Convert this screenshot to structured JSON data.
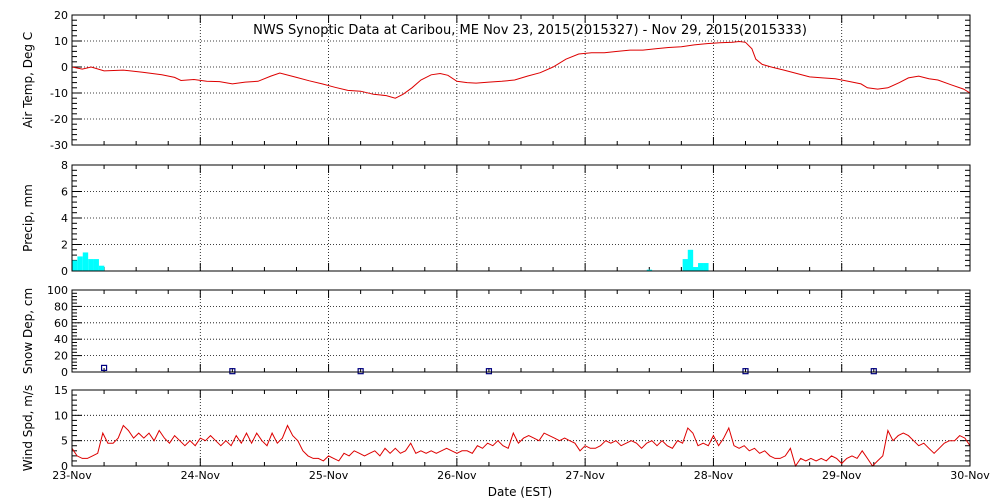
{
  "title": "NWS Synoptic Data at Caribou, ME    Nov 23, 2015(2015327) - Nov 29, 2015(2015333)",
  "xlabel": "Date (EST)",
  "colors": {
    "temp": "#dd0000",
    "precip": "#00ffff",
    "snow": "#000080",
    "wind": "#dd0000",
    "frame": "#000000"
  },
  "chart_data": [
    {
      "name": "air-temp",
      "type": "line",
      "ylabel": "Air Temp, Deg C",
      "ylim": [
        -30,
        20
      ],
      "yticks": [
        -30,
        -20,
        -10,
        0,
        10,
        20
      ],
      "x_dates": [
        "23-Nov",
        "24-Nov",
        "25-Nov",
        "26-Nov",
        "27-Nov",
        "28-Nov",
        "29-Nov",
        "30-Nov"
      ],
      "xlim_days": [
        0,
        7
      ],
      "grid": true,
      "points": [
        [
          0.0,
          0.0
        ],
        [
          0.08,
          -0.8
        ],
        [
          0.15,
          0.0
        ],
        [
          0.25,
          -1.5
        ],
        [
          0.4,
          -1.2
        ],
        [
          0.55,
          -2.0
        ],
        [
          0.7,
          -3.0
        ],
        [
          0.8,
          -4.0
        ],
        [
          0.85,
          -5.2
        ],
        [
          0.95,
          -4.8
        ],
        [
          1.05,
          -5.5
        ],
        [
          1.15,
          -5.6
        ],
        [
          1.25,
          -6.5
        ],
        [
          1.35,
          -5.8
        ],
        [
          1.45,
          -5.5
        ],
        [
          1.55,
          -3.5
        ],
        [
          1.62,
          -2.3
        ],
        [
          1.75,
          -4.0
        ],
        [
          1.85,
          -5.3
        ],
        [
          1.95,
          -6.5
        ],
        [
          2.05,
          -7.8
        ],
        [
          2.15,
          -9.0
        ],
        [
          2.25,
          -9.3
        ],
        [
          2.35,
          -10.5
        ],
        [
          2.45,
          -11.0
        ],
        [
          2.52,
          -12.0
        ],
        [
          2.58,
          -10.5
        ],
        [
          2.65,
          -8.0
        ],
        [
          2.72,
          -5.0
        ],
        [
          2.8,
          -3.0
        ],
        [
          2.87,
          -2.5
        ],
        [
          2.93,
          -3.2
        ],
        [
          3.0,
          -5.5
        ],
        [
          3.08,
          -6.0
        ],
        [
          3.15,
          -6.2
        ],
        [
          3.25,
          -5.8
        ],
        [
          3.35,
          -5.5
        ],
        [
          3.45,
          -5.0
        ],
        [
          3.55,
          -3.5
        ],
        [
          3.65,
          -2.2
        ],
        [
          3.75,
          0.0
        ],
        [
          3.85,
          3.0
        ],
        [
          3.95,
          5.0
        ],
        [
          4.05,
          5.5
        ],
        [
          4.15,
          5.5
        ],
        [
          4.25,
          6.0
        ],
        [
          4.35,
          6.5
        ],
        [
          4.45,
          6.5
        ],
        [
          4.55,
          7.0
        ],
        [
          4.65,
          7.5
        ],
        [
          4.75,
          7.8
        ],
        [
          4.85,
          8.5
        ],
        [
          4.95,
          9.0
        ],
        [
          5.05,
          9.3
        ],
        [
          5.15,
          9.5
        ],
        [
          5.2,
          9.8
        ],
        [
          5.25,
          9.5
        ],
        [
          5.3,
          7.0
        ],
        [
          5.33,
          3.0
        ],
        [
          5.38,
          1.0
        ],
        [
          5.45,
          0.0
        ],
        [
          5.55,
          -1.2
        ],
        [
          5.65,
          -2.5
        ],
        [
          5.75,
          -3.8
        ],
        [
          5.85,
          -4.2
        ],
        [
          5.95,
          -4.5
        ],
        [
          6.05,
          -5.5
        ],
        [
          6.15,
          -6.5
        ],
        [
          6.2,
          -8.0
        ],
        [
          6.28,
          -8.5
        ],
        [
          6.36,
          -8.0
        ],
        [
          6.45,
          -6.0
        ],
        [
          6.52,
          -4.2
        ],
        [
          6.6,
          -3.5
        ],
        [
          6.68,
          -4.5
        ],
        [
          6.75,
          -5.0
        ],
        [
          6.85,
          -6.8
        ],
        [
          6.95,
          -8.5
        ],
        [
          7.0,
          -10.0
        ]
      ]
    },
    {
      "name": "precip",
      "type": "bar",
      "ylabel": "Precip, mm",
      "ylim": [
        0,
        8
      ],
      "yticks": [
        0,
        2,
        4,
        6,
        8
      ],
      "x_dates": [
        "23-Nov",
        "24-Nov",
        "25-Nov",
        "26-Nov",
        "27-Nov",
        "28-Nov",
        "29-Nov",
        "30-Nov"
      ],
      "xlim_days": [
        0,
        7
      ],
      "grid": true,
      "bar_width_days": 0.042,
      "bars": [
        [
          0.0,
          0.8
        ],
        [
          0.042,
          1.1
        ],
        [
          0.084,
          1.4
        ],
        [
          0.126,
          0.9
        ],
        [
          0.168,
          0.9
        ],
        [
          0.21,
          0.4
        ],
        [
          4.48,
          0.1
        ],
        [
          4.76,
          0.9
        ],
        [
          4.8,
          1.6
        ],
        [
          4.84,
          0.3
        ],
        [
          4.88,
          0.6
        ],
        [
          4.92,
          0.6
        ]
      ]
    },
    {
      "name": "snow-depth",
      "type": "scatter",
      "ylabel": "Snow Dep, cm",
      "ylim": [
        0,
        100
      ],
      "yticks": [
        0,
        20,
        40,
        60,
        80,
        100
      ],
      "x_dates": [
        "23-Nov",
        "24-Nov",
        "25-Nov",
        "26-Nov",
        "27-Nov",
        "28-Nov",
        "29-Nov",
        "30-Nov"
      ],
      "xlim_days": [
        0,
        7
      ],
      "grid": true,
      "points": [
        [
          0.25,
          5
        ],
        [
          1.25,
          1
        ],
        [
          2.25,
          1
        ],
        [
          3.25,
          1
        ],
        [
          5.25,
          1
        ],
        [
          6.25,
          1
        ]
      ]
    },
    {
      "name": "wind-speed",
      "type": "line",
      "ylabel": "Wind Spd, m/s",
      "ylim": [
        0,
        15
      ],
      "yticks": [
        0,
        5,
        10,
        15
      ],
      "x_dates": [
        "23-Nov",
        "24-Nov",
        "25-Nov",
        "26-Nov",
        "27-Nov",
        "28-Nov",
        "29-Nov",
        "30-Nov"
      ],
      "xlim_days": [
        0,
        7
      ],
      "grid": true,
      "points": [
        [
          0.0,
          3.5
        ],
        [
          0.04,
          2.0
        ],
        [
          0.08,
          1.5
        ],
        [
          0.12,
          1.5
        ],
        [
          0.16,
          2.0
        ],
        [
          0.2,
          2.5
        ],
        [
          0.24,
          6.5
        ],
        [
          0.28,
          4.5
        ],
        [
          0.32,
          4.5
        ],
        [
          0.36,
          5.5
        ],
        [
          0.4,
          8.0
        ],
        [
          0.44,
          7.0
        ],
        [
          0.48,
          5.5
        ],
        [
          0.52,
          6.5
        ],
        [
          0.56,
          5.5
        ],
        [
          0.6,
          6.5
        ],
        [
          0.64,
          5.0
        ],
        [
          0.68,
          7.0
        ],
        [
          0.72,
          5.5
        ],
        [
          0.76,
          4.5
        ],
        [
          0.8,
          6.0
        ],
        [
          0.84,
          5.0
        ],
        [
          0.88,
          4.0
        ],
        [
          0.92,
          5.0
        ],
        [
          0.96,
          4.0
        ],
        [
          1.0,
          5.5
        ],
        [
          1.04,
          5.0
        ],
        [
          1.08,
          6.0
        ],
        [
          1.12,
          5.0
        ],
        [
          1.16,
          4.0
        ],
        [
          1.2,
          5.0
        ],
        [
          1.24,
          4.0
        ],
        [
          1.28,
          6.0
        ],
        [
          1.32,
          4.5
        ],
        [
          1.36,
          6.5
        ],
        [
          1.4,
          4.5
        ],
        [
          1.44,
          6.5
        ],
        [
          1.48,
          5.0
        ],
        [
          1.52,
          4.0
        ],
        [
          1.56,
          6.5
        ],
        [
          1.6,
          4.5
        ],
        [
          1.64,
          5.5
        ],
        [
          1.68,
          8.0
        ],
        [
          1.72,
          6.0
        ],
        [
          1.76,
          5.0
        ],
        [
          1.8,
          3.0
        ],
        [
          1.84,
          2.0
        ],
        [
          1.88,
          1.5
        ],
        [
          1.92,
          1.5
        ],
        [
          1.96,
          1.0
        ],
        [
          2.0,
          2.0
        ],
        [
          2.04,
          1.5
        ],
        [
          2.08,
          1.0
        ],
        [
          2.12,
          2.5
        ],
        [
          2.16,
          2.0
        ],
        [
          2.2,
          3.0
        ],
        [
          2.24,
          2.5
        ],
        [
          2.28,
          2.0
        ],
        [
          2.32,
          2.5
        ],
        [
          2.36,
          3.0
        ],
        [
          2.4,
          2.0
        ],
        [
          2.44,
          3.5
        ],
        [
          2.48,
          2.5
        ],
        [
          2.52,
          3.5
        ],
        [
          2.56,
          2.5
        ],
        [
          2.6,
          3.0
        ],
        [
          2.64,
          4.5
        ],
        [
          2.68,
          2.5
        ],
        [
          2.72,
          3.0
        ],
        [
          2.76,
          2.5
        ],
        [
          2.8,
          3.0
        ],
        [
          2.84,
          2.5
        ],
        [
          2.88,
          3.0
        ],
        [
          2.92,
          3.5
        ],
        [
          2.96,
          3.0
        ],
        [
          3.0,
          2.5
        ],
        [
          3.04,
          3.0
        ],
        [
          3.08,
          3.0
        ],
        [
          3.12,
          2.5
        ],
        [
          3.16,
          4.0
        ],
        [
          3.2,
          3.5
        ],
        [
          3.24,
          4.5
        ],
        [
          3.28,
          4.0
        ],
        [
          3.32,
          5.0
        ],
        [
          3.36,
          4.0
        ],
        [
          3.4,
          3.5
        ],
        [
          3.44,
          6.5
        ],
        [
          3.48,
          4.5
        ],
        [
          3.52,
          5.5
        ],
        [
          3.56,
          6.0
        ],
        [
          3.6,
          5.5
        ],
        [
          3.64,
          5.0
        ],
        [
          3.68,
          6.5
        ],
        [
          3.72,
          6.0
        ],
        [
          3.76,
          5.5
        ],
        [
          3.8,
          5.0
        ],
        [
          3.84,
          5.5
        ],
        [
          3.88,
          5.0
        ],
        [
          3.92,
          4.5
        ],
        [
          3.96,
          3.0
        ],
        [
          4.0,
          4.0
        ],
        [
          4.04,
          3.5
        ],
        [
          4.08,
          3.5
        ],
        [
          4.12,
          4.0
        ],
        [
          4.16,
          5.0
        ],
        [
          4.2,
          4.5
        ],
        [
          4.24,
          5.0
        ],
        [
          4.28,
          4.0
        ],
        [
          4.32,
          4.5
        ],
        [
          4.36,
          5.0
        ],
        [
          4.4,
          4.5
        ],
        [
          4.44,
          3.5
        ],
        [
          4.48,
          4.5
        ],
        [
          4.52,
          5.0
        ],
        [
          4.56,
          4.0
        ],
        [
          4.6,
          5.0
        ],
        [
          4.64,
          4.0
        ],
        [
          4.68,
          3.5
        ],
        [
          4.72,
          5.0
        ],
        [
          4.76,
          4.5
        ],
        [
          4.8,
          7.5
        ],
        [
          4.84,
          6.5
        ],
        [
          4.88,
          4.0
        ],
        [
          4.92,
          4.5
        ],
        [
          4.96,
          4.0
        ],
        [
          5.0,
          6.0
        ],
        [
          5.04,
          4.0
        ],
        [
          5.08,
          5.5
        ],
        [
          5.12,
          7.5
        ],
        [
          5.16,
          4.0
        ],
        [
          5.2,
          3.5
        ],
        [
          5.24,
          4.0
        ],
        [
          5.28,
          3.0
        ],
        [
          5.32,
          3.5
        ],
        [
          5.36,
          2.5
        ],
        [
          5.4,
          3.0
        ],
        [
          5.44,
          2.0
        ],
        [
          5.48,
          1.5
        ],
        [
          5.52,
          1.5
        ],
        [
          5.56,
          2.0
        ],
        [
          5.6,
          3.5
        ],
        [
          5.64,
          0.0
        ],
        [
          5.68,
          1.5
        ],
        [
          5.72,
          1.0
        ],
        [
          5.76,
          1.5
        ],
        [
          5.8,
          1.0
        ],
        [
          5.84,
          1.5
        ],
        [
          5.88,
          1.0
        ],
        [
          5.92,
          2.0
        ],
        [
          5.96,
          1.5
        ],
        [
          6.0,
          0.5
        ],
        [
          6.04,
          1.5
        ],
        [
          6.08,
          2.0
        ],
        [
          6.12,
          1.5
        ],
        [
          6.16,
          3.0
        ],
        [
          6.2,
          1.5
        ],
        [
          6.24,
          -0.5
        ],
        [
          6.28,
          1.0
        ],
        [
          6.32,
          2.0
        ],
        [
          6.36,
          7.0
        ],
        [
          6.4,
          5.0
        ],
        [
          6.44,
          6.0
        ],
        [
          6.48,
          6.5
        ],
        [
          6.52,
          6.0
        ],
        [
          6.56,
          5.0
        ],
        [
          6.6,
          4.0
        ],
        [
          6.64,
          4.5
        ],
        [
          6.68,
          3.5
        ],
        [
          6.72,
          2.5
        ],
        [
          6.76,
          3.5
        ],
        [
          6.8,
          4.5
        ],
        [
          6.84,
          5.0
        ],
        [
          6.88,
          5.0
        ],
        [
          6.92,
          6.0
        ],
        [
          6.96,
          5.5
        ],
        [
          7.0,
          4.0
        ]
      ]
    }
  ]
}
